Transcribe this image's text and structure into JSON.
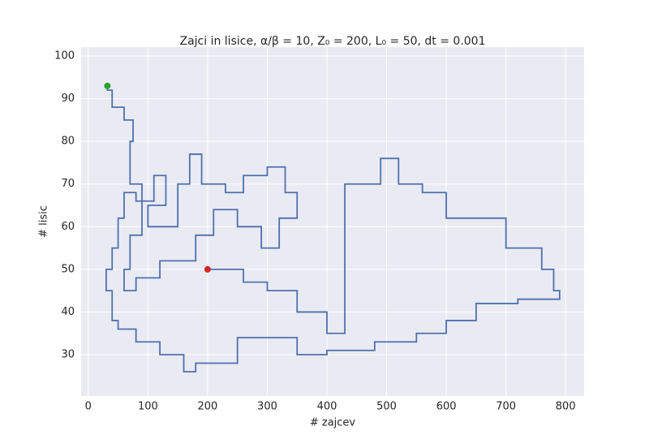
{
  "chart_data": {
    "type": "line",
    "title": "Zajci in lisice, α/β = 10, Z₀ = 200, L₀ = 50, dt = 0.001",
    "xlabel": "# zajcev",
    "ylabel": "# lisic",
    "xlim": [
      -12,
      831
    ],
    "ylim": [
      20.3,
      102.1
    ],
    "xticks": [
      0,
      100,
      200,
      300,
      400,
      500,
      600,
      700,
      800
    ],
    "yticks": [
      30,
      40,
      50,
      60,
      70,
      80,
      90,
      100
    ],
    "grid": true,
    "background": "#eaeaf2",
    "series": [
      {
        "color": "#4c72b0",
        "x": [
          200,
          260,
          300,
          350,
          400,
          430,
          490,
          520,
          560,
          600,
          650,
          700,
          760,
          780,
          790,
          720,
          650,
          600,
          550,
          480,
          400,
          350,
          300,
          250,
          180,
          160,
          120,
          80,
          50,
          40,
          30,
          40,
          50,
          60,
          80,
          110,
          130,
          100,
          150,
          170,
          190,
          230,
          260,
          300,
          330,
          350,
          320,
          290,
          250,
          210,
          180,
          120,
          80,
          60,
          70,
          90,
          70,
          75,
          60,
          40,
          32
        ],
        "y": [
          50,
          47,
          45,
          40,
          35,
          70,
          76,
          70,
          68,
          62,
          62,
          55,
          50,
          45,
          43,
          42,
          38,
          35,
          33,
          31,
          30,
          34,
          34,
          28,
          26,
          30,
          33,
          36,
          38,
          45,
          50,
          55,
          62,
          68,
          66,
          72,
          65,
          60,
          70,
          77,
          70,
          68,
          72,
          74,
          68,
          62,
          55,
          60,
          64,
          58,
          52,
          48,
          45,
          50,
          58,
          70,
          80,
          85,
          88,
          92,
          93
        ]
      }
    ],
    "start_color": "#d62728",
    "end_color": "#2ca02c"
  }
}
